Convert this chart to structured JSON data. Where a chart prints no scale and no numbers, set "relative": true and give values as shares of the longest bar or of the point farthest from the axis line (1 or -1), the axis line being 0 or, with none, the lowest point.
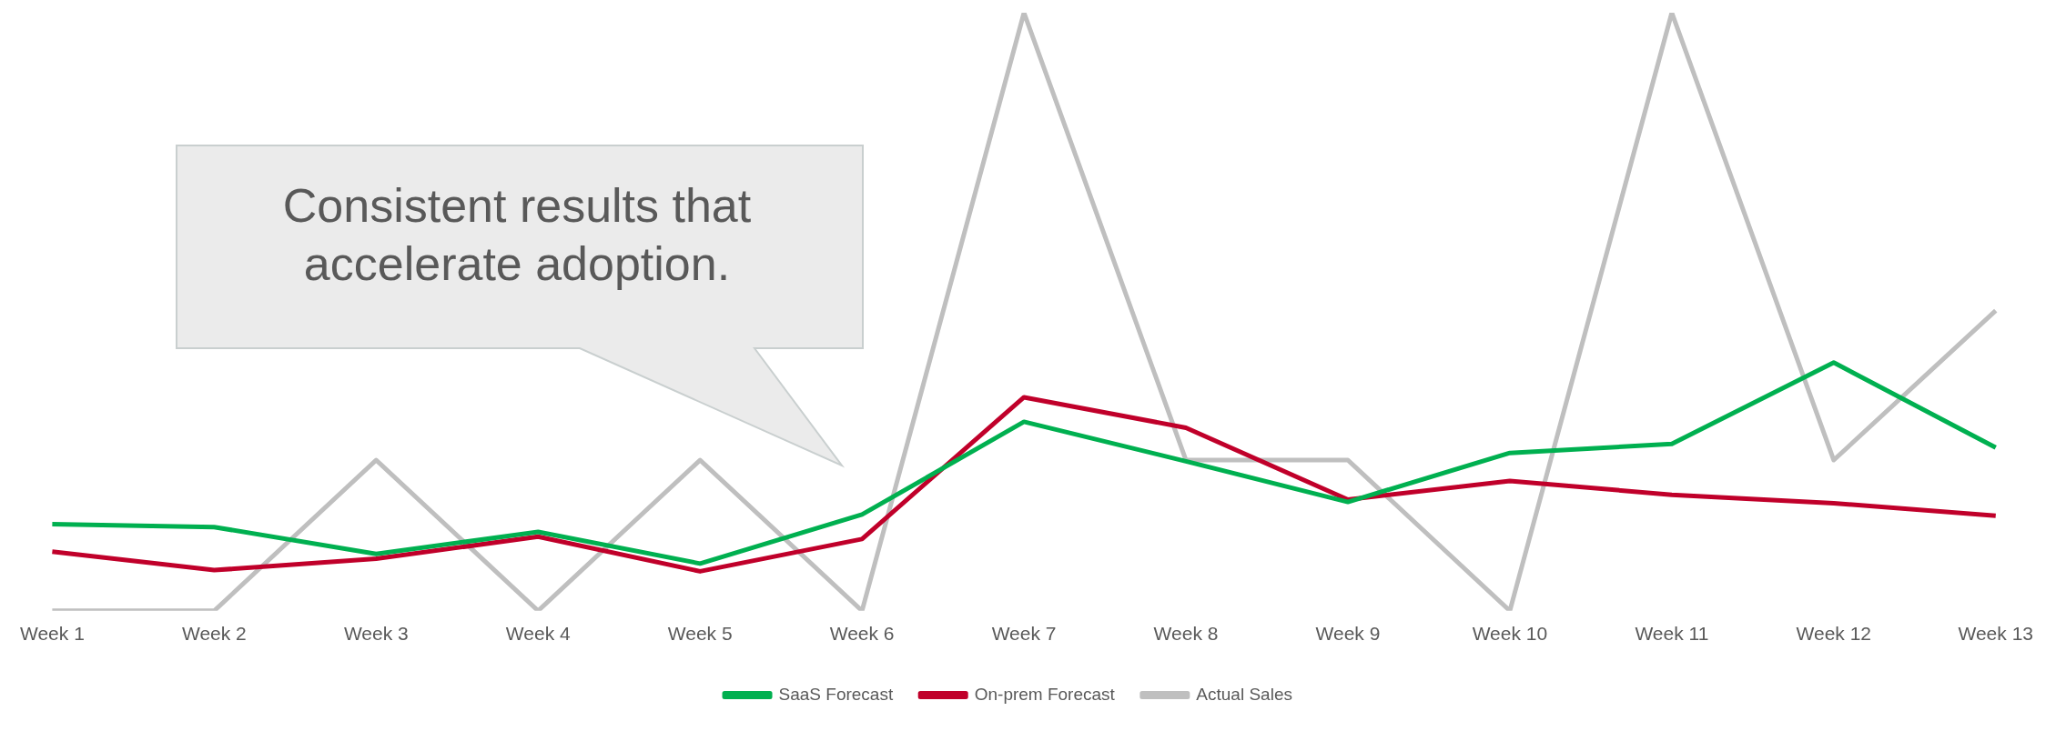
{
  "chart_data": {
    "type": "line",
    "relative": true,
    "categories": [
      "Week 1",
      "Week 2",
      "Week 3",
      "Week 4",
      "Week 5",
      "Week 6",
      "Week 7",
      "Week 8",
      "Week 9",
      "Week 10",
      "Week 11",
      "Week 12",
      "Week 13"
    ],
    "series": [
      {
        "name": "SaaS Forecast",
        "color": "#00b050",
        "values": [
          0.145,
          0.14,
          0.095,
          0.132,
          0.079,
          0.161,
          0.316,
          0.25,
          0.182,
          0.264,
          0.279,
          0.415,
          0.273
        ]
      },
      {
        "name": "On-prem Forecast",
        "color": "#c0002a",
        "values": [
          0.099,
          0.068,
          0.087,
          0.124,
          0.066,
          0.12,
          0.357,
          0.306,
          0.186,
          0.217,
          0.194,
          0.18,
          0.159
        ]
      },
      {
        "name": "Actual Sales",
        "color": "#bfbfbf",
        "values": [
          0,
          0,
          0.252,
          0,
          0.252,
          0,
          1,
          0.252,
          0.252,
          0,
          1,
          0.252,
          0.502
        ]
      }
    ],
    "annotations": [
      "Consistent results that accelerate adoption."
    ],
    "legend": "bottom",
    "grid": false,
    "marker": "none",
    "line_style": "solid"
  }
}
